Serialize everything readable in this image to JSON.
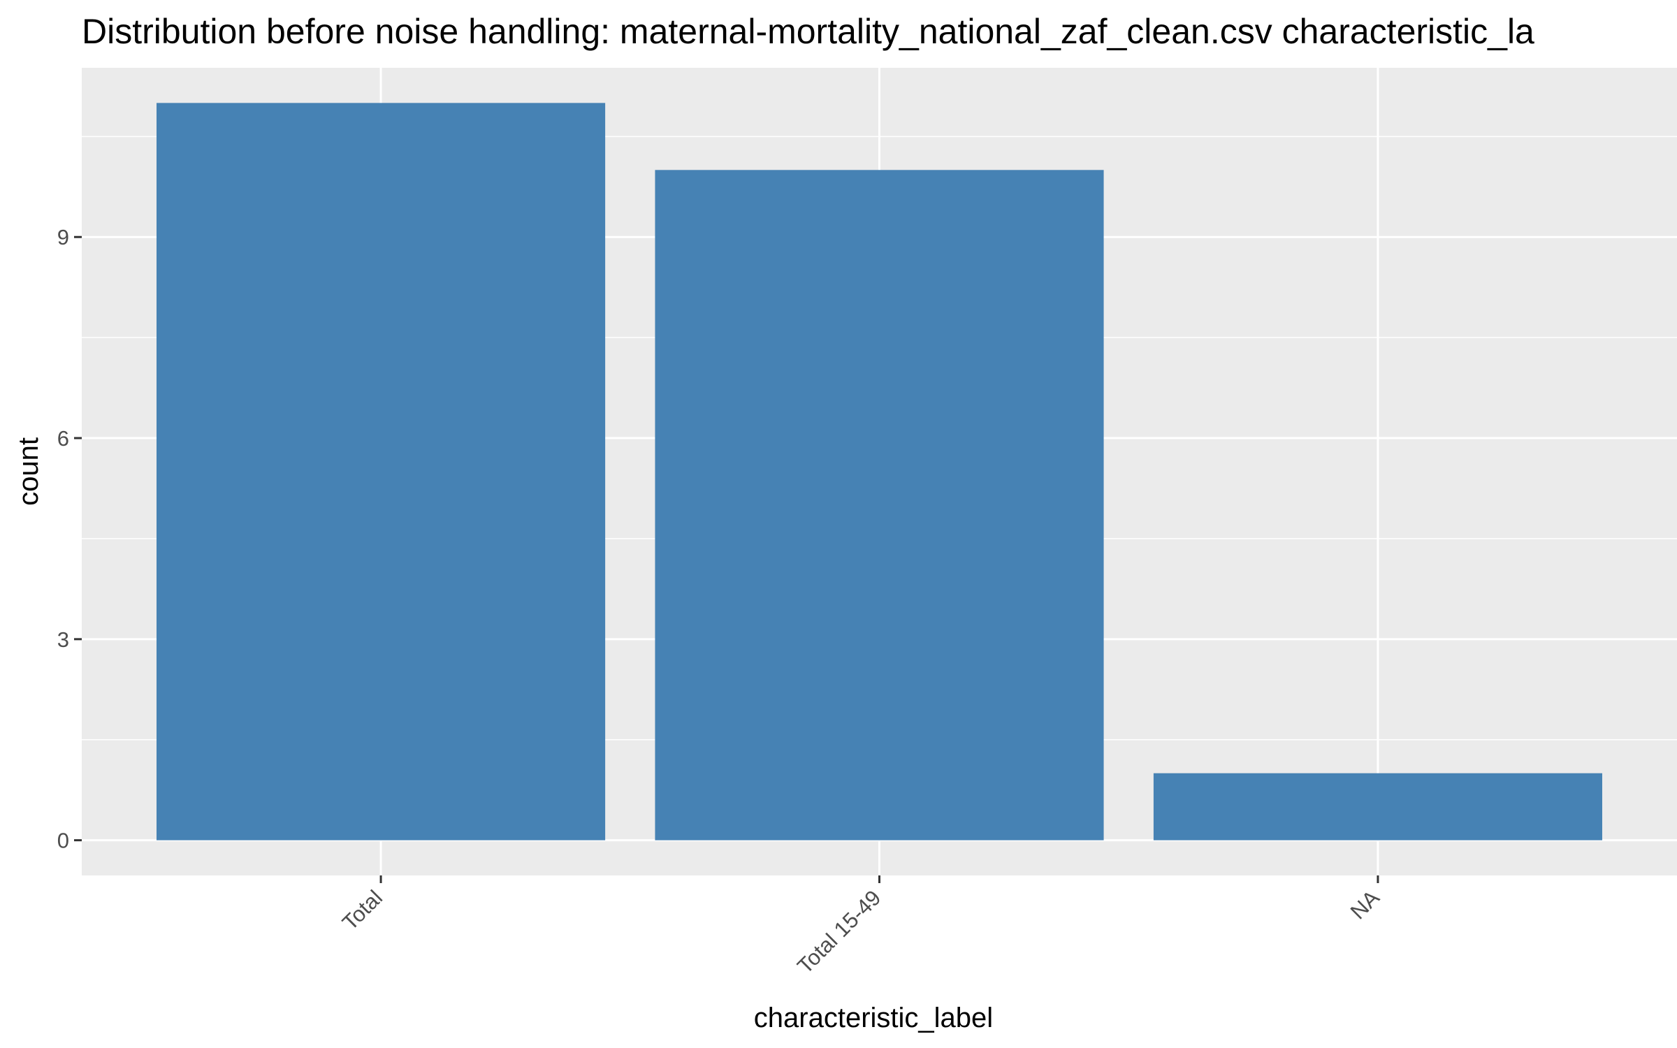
{
  "chart_data": {
    "type": "bar",
    "title": "Distribution before noise handling: maternal-mortality_national_zaf_clean.csv characteristic_la",
    "xlabel": "characteristic_label",
    "ylabel": "count",
    "categories": [
      "Total",
      "Total 15-49",
      "NA"
    ],
    "values": [
      11,
      10,
      1
    ],
    "ylim": [
      -0.525,
      11.525
    ],
    "yticks": [
      0,
      3,
      6,
      9
    ],
    "grid": true,
    "legend": "none",
    "bar_color": "#4682b4",
    "panel_color": "#ebebeb",
    "grid_color": "#ffffff"
  }
}
